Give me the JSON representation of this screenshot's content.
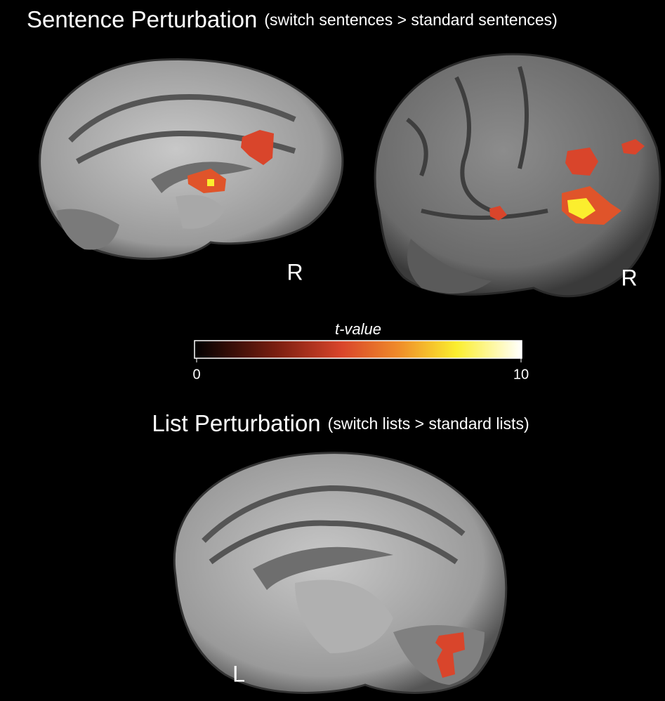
{
  "figure": {
    "top_panel": {
      "title": "Sentence Perturbation",
      "subtitle": "(switch sentences > standard sentences)",
      "left_view_label": "R",
      "right_view_label": "R"
    },
    "colorbar": {
      "label": "t-value",
      "lim": [
        0,
        10
      ],
      "ticks": [
        0,
        10
      ]
    },
    "bottom_panel": {
      "title": "List Perturbation",
      "subtitle": "(switch lists > standard lists)",
      "view_label": "L"
    }
  }
}
